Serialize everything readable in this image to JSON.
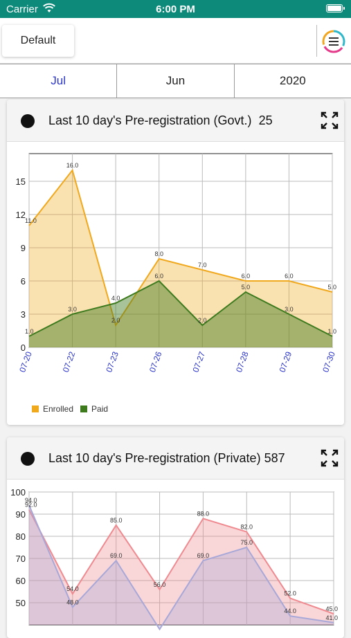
{
  "status_bar": {
    "carrier": "Carrier",
    "time": "6:00 PM"
  },
  "header": {
    "default_label": "Default"
  },
  "tabs": [
    {
      "label": "Jul",
      "active": true
    },
    {
      "label": "Jun",
      "active": false
    },
    {
      "label": "2020",
      "active": false
    }
  ],
  "colors": {
    "enrolled": "#f0a81d",
    "paid": "#3e7b1e",
    "private_main": "#ef8a90",
    "private_second": "#a8a8d8",
    "active_tab": "#2a34c8",
    "status_bar": "#0d8a7a"
  },
  "cards": [
    {
      "title": "Last 10 day's Pre-registration (Govt.)",
      "count": "25"
    },
    {
      "title": "Last 10 day's Pre-registration (Private)",
      "count": "587"
    }
  ],
  "chart_data": [
    {
      "type": "area",
      "categories": [
        "07-20",
        "07-22",
        "07-23",
        "07-26",
        "07-27",
        "07-28",
        "07-29",
        "07-30"
      ],
      "series": [
        {
          "name": "Enrolled",
          "values": [
            11.0,
            16.0,
            2.0,
            8.0,
            7.0,
            6.0,
            6.0,
            5.0
          ],
          "labels": [
            "11.0",
            "16.0",
            "2.0",
            "8.0",
            "7.0",
            "6.0",
            "6.0",
            "5.0"
          ]
        },
        {
          "name": "Paid",
          "values": [
            1.0,
            3.0,
            4.0,
            6.0,
            2.0,
            5.0,
            3.0,
            1.0
          ],
          "labels": [
            "1.0",
            "3.0",
            "4.0",
            "6.0",
            "2.0",
            "5.0",
            "3.0",
            "1.0"
          ]
        }
      ],
      "yticks": [
        "0",
        "3",
        "6",
        "9",
        "12",
        "15"
      ],
      "ylim": [
        0,
        17.5
      ],
      "grid": true,
      "legend": "bottom-left"
    },
    {
      "type": "area",
      "series": [
        {
          "values": [
            92.0,
            54.0,
            85.0,
            56.0,
            88.0,
            82.0,
            52.0,
            45.0
          ],
          "labels": [
            "92.0",
            "54.0",
            "85.0",
            "56.0",
            "88.0",
            "82.0",
            "52.0",
            "45.0"
          ]
        },
        {
          "values": [
            94.0,
            48.0,
            69.0,
            38.0,
            69.0,
            75.0,
            44.0,
            41.0
          ],
          "labels": [
            "94.0",
            "48.0",
            "69.0",
            "",
            "69.0",
            "75.0",
            "44.0",
            "41.0"
          ]
        }
      ],
      "yticks": [
        "50",
        "60",
        "70",
        "80",
        "90",
        "100"
      ],
      "ylim": [
        40,
        100
      ],
      "grid": true
    }
  ]
}
